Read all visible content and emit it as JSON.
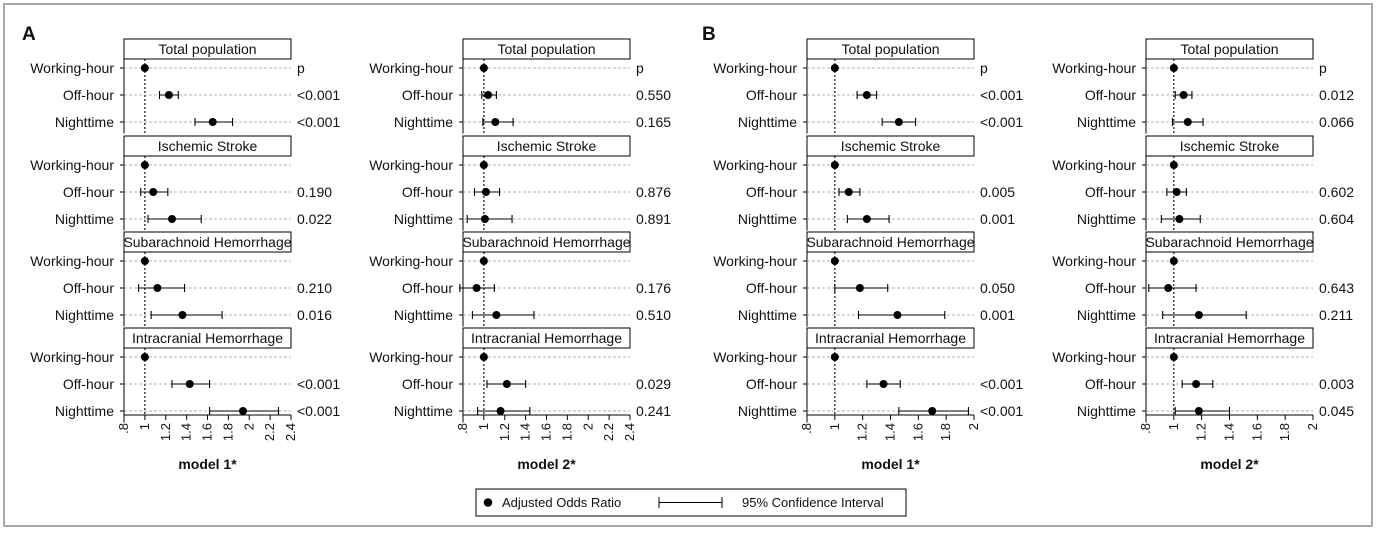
{
  "panels": [
    {
      "label": "A"
    },
    {
      "label": "B"
    }
  ],
  "legend": {
    "point_label": "Adjusted Odds Ratio",
    "ci_label": "95% Confidence Interval"
  },
  "chart_data": [
    {
      "type": "forest",
      "panel": "A",
      "model": "model 1*",
      "xticks": [
        ".8",
        "1",
        "1.2",
        "1.4",
        "1.6",
        "1.8",
        "2",
        "2.2",
        "2.4"
      ],
      "xlim": [
        0.8,
        2.4
      ],
      "reference_line": 1,
      "p_header": "p",
      "groups": [
        {
          "title": "Total population",
          "rows": [
            {
              "label": "Working-hour",
              "or": 1.0,
              "lo": null,
              "hi": null,
              "p": "p"
            },
            {
              "label": "Off-hour",
              "or": 1.23,
              "lo": 1.14,
              "hi": 1.32,
              "p": "<0.001"
            },
            {
              "label": "Nighttime",
              "or": 1.65,
              "lo": 1.48,
              "hi": 1.84,
              "p": "<0.001"
            }
          ]
        },
        {
          "title": "Ischemic Stroke",
          "rows": [
            {
              "label": "Working-hour",
              "or": 1.0,
              "lo": null,
              "hi": null,
              "p": ""
            },
            {
              "label": "Off-hour",
              "or": 1.08,
              "lo": 0.96,
              "hi": 1.22,
              "p": "0.190"
            },
            {
              "label": "Nighttime",
              "or": 1.26,
              "lo": 1.03,
              "hi": 1.54,
              "p": "0.022"
            }
          ]
        },
        {
          "title": "Subarachnoid Hemorrhage",
          "rows": [
            {
              "label": "Working-hour",
              "or": 1.0,
              "lo": null,
              "hi": null,
              "p": ""
            },
            {
              "label": "Off-hour",
              "or": 1.12,
              "lo": 0.94,
              "hi": 1.38,
              "p": "0.210"
            },
            {
              "label": "Nighttime",
              "or": 1.36,
              "lo": 1.06,
              "hi": 1.74,
              "p": "0.016"
            }
          ]
        },
        {
          "title": "Intracranial Hemorrhage",
          "rows": [
            {
              "label": "Working-hour",
              "or": 1.0,
              "lo": null,
              "hi": null,
              "p": ""
            },
            {
              "label": "Off-hour",
              "or": 1.43,
              "lo": 1.26,
              "hi": 1.62,
              "p": "<0.001"
            },
            {
              "label": "Nighttime",
              "or": 1.94,
              "lo": 1.62,
              "hi": 2.28,
              "p": "<0.001"
            }
          ]
        }
      ]
    },
    {
      "type": "forest",
      "panel": "A",
      "model": "model 2*",
      "xticks": [
        ".8",
        "1",
        "1.2",
        "1.4",
        "1.6",
        "1.8",
        "2",
        "2.2",
        "2.4"
      ],
      "xlim": [
        0.8,
        2.4
      ],
      "reference_line": 1,
      "p_header": "p",
      "groups": [
        {
          "title": "Total population",
          "rows": [
            {
              "label": "Working-hour",
              "or": 1.0,
              "lo": null,
              "hi": null,
              "p": "p"
            },
            {
              "label": "Off-hour",
              "or": 1.04,
              "lo": 0.98,
              "hi": 1.12,
              "p": "0.550"
            },
            {
              "label": "Nighttime",
              "or": 1.11,
              "lo": 0.99,
              "hi": 1.28,
              "p": "0.165"
            }
          ]
        },
        {
          "title": "Ischemic Stroke",
          "rows": [
            {
              "label": "Working-hour",
              "or": 1.0,
              "lo": null,
              "hi": null,
              "p": ""
            },
            {
              "label": "Off-hour",
              "or": 1.02,
              "lo": 0.91,
              "hi": 1.15,
              "p": "0.876"
            },
            {
              "label": "Nighttime",
              "or": 1.01,
              "lo": 0.84,
              "hi": 1.27,
              "p": "0.891"
            }
          ]
        },
        {
          "title": "Subarachnoid Hemorrhage",
          "rows": [
            {
              "label": "Working-hour",
              "or": 1.0,
              "lo": null,
              "hi": null,
              "p": ""
            },
            {
              "label": "Off-hour",
              "or": 0.93,
              "lo": 0.77,
              "hi": 1.1,
              "p": "0.176"
            },
            {
              "label": "Nighttime",
              "or": 1.12,
              "lo": 0.89,
              "hi": 1.48,
              "p": "0.510"
            }
          ]
        },
        {
          "title": "Intracranial Hemorrhage",
          "rows": [
            {
              "label": "Working-hour",
              "or": 1.0,
              "lo": null,
              "hi": null,
              "p": ""
            },
            {
              "label": "Off-hour",
              "or": 1.22,
              "lo": 1.03,
              "hi": 1.4,
              "p": "0.029"
            },
            {
              "label": "Nighttime",
              "or": 1.16,
              "lo": 0.94,
              "hi": 1.44,
              "p": "0.241"
            }
          ]
        }
      ]
    },
    {
      "type": "forest",
      "panel": "B",
      "model": "model 1*",
      "xticks": [
        ".8",
        "1",
        "1.2",
        "1.4",
        "1.6",
        "1.8",
        "2"
      ],
      "xlim": [
        0.8,
        2.0
      ],
      "reference_line": 1,
      "p_header": "p",
      "groups": [
        {
          "title": "Total population",
          "rows": [
            {
              "label": "Working-hour",
              "or": 1.0,
              "lo": null,
              "hi": null,
              "p": "p"
            },
            {
              "label": "Off-hour",
              "or": 1.23,
              "lo": 1.16,
              "hi": 1.3,
              "p": "<0.001"
            },
            {
              "label": "Nighttime",
              "or": 1.46,
              "lo": 1.34,
              "hi": 1.58,
              "p": "<0.001"
            }
          ]
        },
        {
          "title": "Ischemic Stroke",
          "rows": [
            {
              "label": "Working-hour",
              "or": 1.0,
              "lo": null,
              "hi": null,
              "p": ""
            },
            {
              "label": "Off-hour",
              "or": 1.1,
              "lo": 1.03,
              "hi": 1.18,
              "p": "0.005"
            },
            {
              "label": "Nighttime",
              "or": 1.23,
              "lo": 1.09,
              "hi": 1.39,
              "p": "0.001"
            }
          ]
        },
        {
          "title": "Subarachnoid Hemorrhage",
          "rows": [
            {
              "label": "Working-hour",
              "or": 1.0,
              "lo": null,
              "hi": null,
              "p": ""
            },
            {
              "label": "Off-hour",
              "or": 1.18,
              "lo": 1.0,
              "hi": 1.38,
              "p": "0.050"
            },
            {
              "label": "Nighttime",
              "or": 1.45,
              "lo": 1.17,
              "hi": 1.79,
              "p": "0.001"
            }
          ]
        },
        {
          "title": "Intracranial Hemorrhage",
          "rows": [
            {
              "label": "Working-hour",
              "or": 1.0,
              "lo": null,
              "hi": null,
              "p": ""
            },
            {
              "label": "Off-hour",
              "or": 1.35,
              "lo": 1.23,
              "hi": 1.47,
              "p": "<0.001"
            },
            {
              "label": "Nighttime",
              "or": 1.7,
              "lo": 1.46,
              "hi": 1.96,
              "p": "<0.001"
            }
          ]
        }
      ]
    },
    {
      "type": "forest",
      "panel": "B",
      "model": "model 2*",
      "xticks": [
        ".8",
        "1",
        "1.2",
        "1.4",
        "1.6",
        "1.8",
        "2"
      ],
      "xlim": [
        0.8,
        2.0
      ],
      "reference_line": 1,
      "p_header": "p",
      "groups": [
        {
          "title": "Total population",
          "rows": [
            {
              "label": "Working-hour",
              "or": 1.0,
              "lo": null,
              "hi": null,
              "p": "p"
            },
            {
              "label": "Off-hour",
              "or": 1.07,
              "lo": 1.01,
              "hi": 1.13,
              "p": "0.012"
            },
            {
              "label": "Nighttime",
              "or": 1.1,
              "lo": 0.99,
              "hi": 1.21,
              "p": "0.066"
            }
          ]
        },
        {
          "title": "Ischemic Stroke",
          "rows": [
            {
              "label": "Working-hour",
              "or": 1.0,
              "lo": null,
              "hi": null,
              "p": ""
            },
            {
              "label": "Off-hour",
              "or": 1.02,
              "lo": 0.95,
              "hi": 1.09,
              "p": "0.602"
            },
            {
              "label": "Nighttime",
              "or": 1.04,
              "lo": 0.91,
              "hi": 1.19,
              "p": "0.604"
            }
          ]
        },
        {
          "title": "Subarachnoid Hemorrhage",
          "rows": [
            {
              "label": "Working-hour",
              "or": 1.0,
              "lo": null,
              "hi": null,
              "p": ""
            },
            {
              "label": "Off-hour",
              "or": 0.96,
              "lo": 0.82,
              "hi": 1.16,
              "p": "0.643"
            },
            {
              "label": "Nighttime",
              "or": 1.18,
              "lo": 0.92,
              "hi": 1.52,
              "p": "0.211"
            }
          ]
        },
        {
          "title": "Intracranial Hemorrhage",
          "rows": [
            {
              "label": "Working-hour",
              "or": 1.0,
              "lo": null,
              "hi": null,
              "p": ""
            },
            {
              "label": "Off-hour",
              "or": 1.16,
              "lo": 1.06,
              "hi": 1.28,
              "p": "0.003"
            },
            {
              "label": "Nighttime",
              "or": 1.18,
              "lo": 1.01,
              "hi": 1.4,
              "p": "0.045"
            }
          ]
        }
      ]
    }
  ]
}
